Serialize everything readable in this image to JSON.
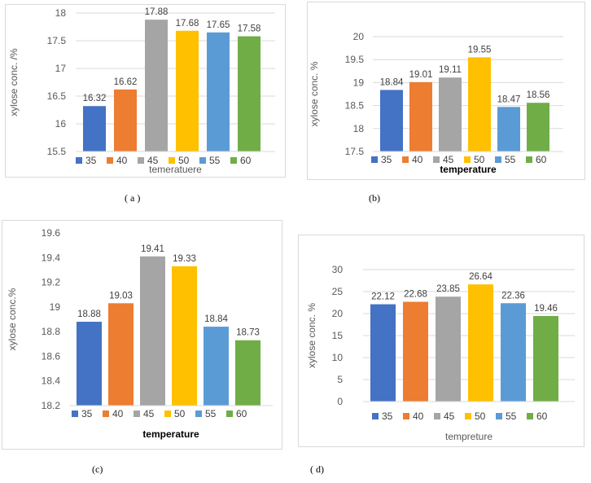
{
  "legend": {
    "labels": [
      "35",
      "40",
      "45",
      "50",
      "55",
      "60"
    ],
    "colors": [
      "#4472c4",
      "#ed7d31",
      "#a5a5a5",
      "#ffc000",
      "#5b9bd5",
      "#70ad47"
    ]
  },
  "chart_data": [
    {
      "type": "bar",
      "caption": "( a )",
      "xlabel": "temeratuere",
      "ylabel": "xylose conc. /%",
      "categories": [
        "35",
        "40",
        "45",
        "50",
        "55",
        "60"
      ],
      "values": [
        16.32,
        16.62,
        17.88,
        17.68,
        17.65,
        17.58
      ],
      "data_labels": [
        "16.32",
        "16.62",
        "17.88",
        "17.68",
        "17.65",
        "17.58"
      ],
      "ylim": [
        15.5,
        18
      ],
      "yticks": [
        "15.5",
        "16",
        "16.5",
        "17",
        "17.5",
        "18"
      ],
      "grid": true,
      "legend_position": "bottom"
    },
    {
      "type": "bar",
      "caption": "(b)",
      "xlabel": "temperature",
      "ylabel": "xylose conc. %",
      "categories": [
        "35",
        "40",
        "45",
        "50",
        "55",
        "60"
      ],
      "values": [
        18.84,
        19.01,
        19.11,
        19.55,
        18.47,
        18.56
      ],
      "data_labels": [
        "18.84",
        "19.01",
        "19.11",
        "19.55",
        "18.47",
        "18.56"
      ],
      "ylim": [
        17.5,
        20
      ],
      "yticks": [
        "17.5",
        "18",
        "18.5",
        "19",
        "19.5",
        "20"
      ],
      "grid": true,
      "legend_position": "bottom"
    },
    {
      "type": "bar",
      "caption": "(c)",
      "xlabel": "temperature",
      "ylabel": "xylose conc.%",
      "categories": [
        "35",
        "40",
        "45",
        "50",
        "55",
        "60"
      ],
      "values": [
        18.88,
        19.03,
        19.41,
        19.33,
        18.84,
        18.73
      ],
      "data_labels": [
        "18.88",
        "19.03",
        "19.41",
        "19.33",
        "18.84",
        "18.73"
      ],
      "ylim": [
        18.2,
        19.6
      ],
      "yticks": [
        "18.2",
        "18.4",
        "18.6",
        "18.8",
        "19",
        "19.2",
        "19.4",
        "19.6"
      ],
      "grid": false,
      "legend_position": "bottom"
    },
    {
      "type": "bar",
      "caption": "( d)",
      "xlabel": "tempreture",
      "ylabel": "xylose conc. %",
      "categories": [
        "35",
        "40",
        "45",
        "50",
        "55",
        "60"
      ],
      "values": [
        22.12,
        22.68,
        23.85,
        26.64,
        22.36,
        19.46
      ],
      "data_labels": [
        "22.12",
        "22.68",
        "23.85",
        "26.64",
        "22.36",
        "19.46"
      ],
      "ylim": [
        0,
        30
      ],
      "yticks": [
        "0",
        "5",
        "10",
        "15",
        "20",
        "25",
        "30"
      ],
      "grid": true,
      "legend_position": "bottom"
    }
  ]
}
